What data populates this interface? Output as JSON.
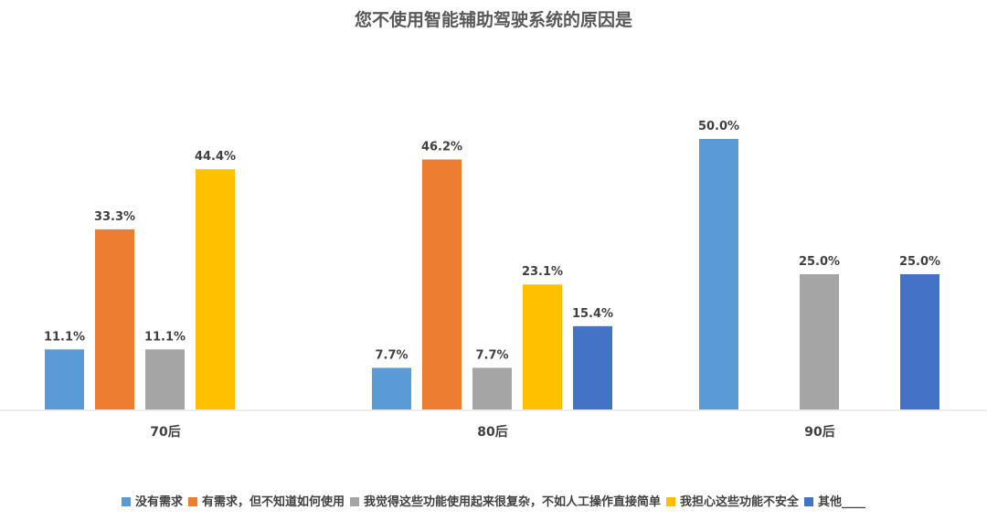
{
  "chart_data": {
    "type": "bar",
    "title": "您不使用智能辅助驾驶系统的原因是",
    "categories": [
      "70后",
      "80后",
      "90后"
    ],
    "series": [
      {
        "name": "没有需求",
        "color": "#5B9BD5",
        "values": [
          11.1,
          7.7,
          50.0
        ],
        "labels": [
          "11.1%",
          "7.7%",
          "50.0%"
        ]
      },
      {
        "name": "有需求，但不知道如何使用",
        "color": "#ED7D31",
        "values": [
          33.3,
          46.2,
          null
        ],
        "labels": [
          "33.3%",
          "46.2%",
          ""
        ]
      },
      {
        "name": "我觉得这些功能使用起来很复杂，不如人工操作直接简单",
        "color": "#A5A5A5",
        "values": [
          11.1,
          7.7,
          25.0
        ],
        "labels": [
          "11.1%",
          "7.7%",
          "25.0%"
        ]
      },
      {
        "name": "我担心这些功能不安全",
        "color": "#FFC000",
        "values": [
          44.4,
          23.1,
          null
        ],
        "labels": [
          "44.4%",
          "23.1%",
          ""
        ]
      },
      {
        "name": "其他____",
        "color": "#4472C4",
        "values": [
          null,
          15.4,
          25.0
        ],
        "labels": [
          "",
          "15.4%",
          "25.0%"
        ]
      }
    ],
    "ylim": [
      0,
      60
    ],
    "grid": false,
    "legend_position": "bottom"
  }
}
